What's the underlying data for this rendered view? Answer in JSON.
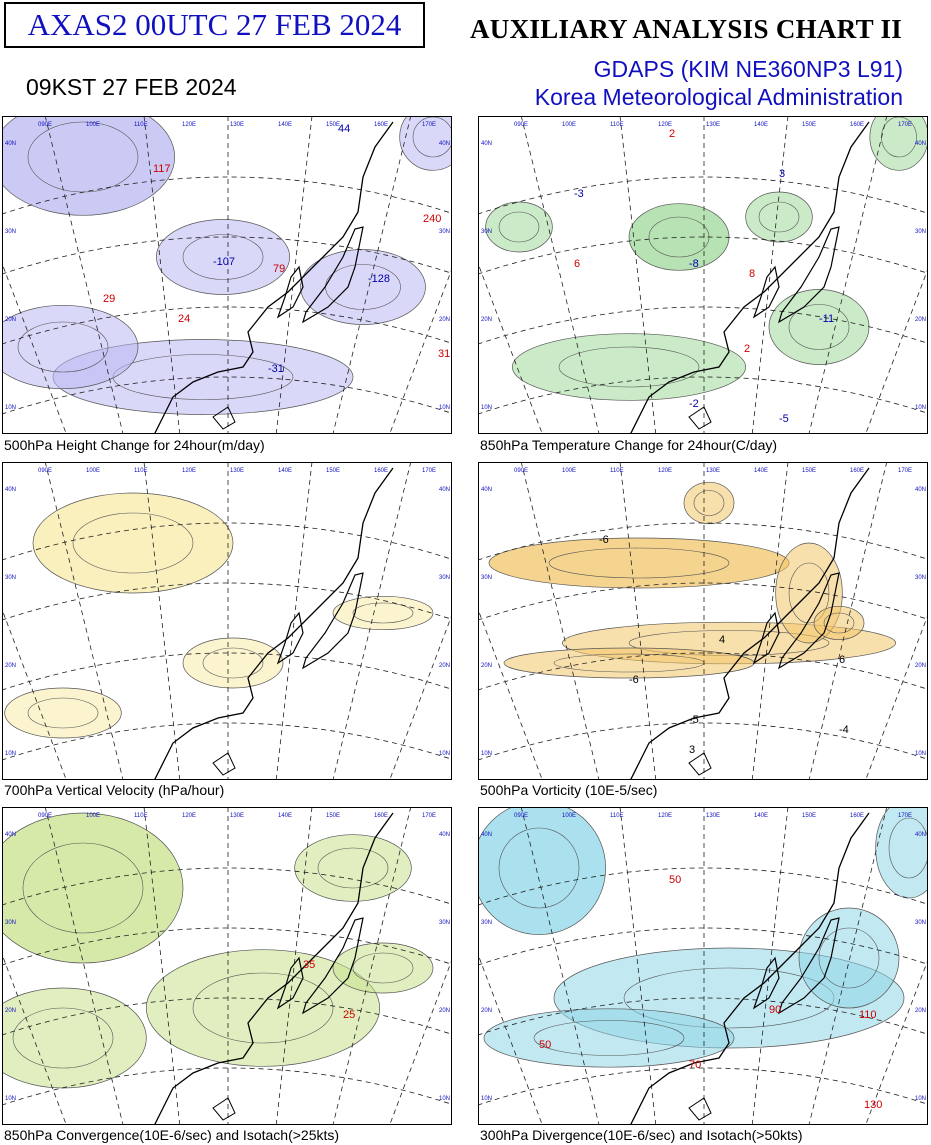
{
  "header": {
    "code": "AXAS2  00UTC 27 FEB 2024",
    "kst": "09KST 27 FEB 2024",
    "title": "AUXILIARY ANALYSIS CHART II",
    "model": "GDAPS (KIM NE360NP3 L91)",
    "agency": "Korea Meteorological Administration"
  },
  "panels": [
    {
      "caption": "500hPa Height Change for 24hour(m/day)",
      "fill": "#b9b8f2",
      "labels": [
        {
          "text": "117",
          "color": "#cc0000"
        },
        {
          "text": "-107",
          "color": "#0000aa"
        },
        {
          "text": "79",
          "color": "#cc0000"
        },
        {
          "text": "-128",
          "color": "#0000aa"
        },
        {
          "text": "240",
          "color": "#cc0000"
        },
        {
          "text": "29",
          "color": "#cc0000"
        },
        {
          "text": "24",
          "color": "#cc0000"
        },
        {
          "text": "-31",
          "color": "#0000aa"
        },
        {
          "text": "31",
          "color": "#cc0000"
        },
        {
          "text": "44",
          "color": "#0000aa"
        }
      ]
    },
    {
      "caption": "850hPa Temperature Change for 24hour(C/day)",
      "fill": "#9fd89a",
      "labels": [
        {
          "text": "2",
          "color": "#cc0000"
        },
        {
          "text": "-3",
          "color": "#0000aa"
        },
        {
          "text": "6",
          "color": "#cc0000"
        },
        {
          "text": "-8",
          "color": "#0000aa"
        },
        {
          "text": "8",
          "color": "#cc0000"
        },
        {
          "text": "-11",
          "color": "#0000aa"
        },
        {
          "text": "2",
          "color": "#cc0000"
        },
        {
          "text": "-2",
          "color": "#0000aa"
        },
        {
          "text": "3",
          "color": "#0000aa"
        },
        {
          "text": "-5",
          "color": "#0000aa"
        }
      ]
    },
    {
      "caption": "700hPa Vertical Velocity (hPa/hour)",
      "fill": "#f7eba8",
      "labels": []
    },
    {
      "caption": "500hPa Vorticity (10E-5/sec)",
      "fill": "#f2c66a",
      "labels": [
        {
          "text": "-6",
          "color": "#000000"
        },
        {
          "text": "4",
          "color": "#000000"
        },
        {
          "text": "-6",
          "color": "#000000"
        },
        {
          "text": "-5",
          "color": "#000000"
        },
        {
          "text": "6",
          "color": "#000000"
        },
        {
          "text": "-4",
          "color": "#000000"
        },
        {
          "text": "3",
          "color": "#000000"
        }
      ]
    },
    {
      "caption": "850hPa Convergence(10E-6/sec) and Isotach(>25kts)",
      "fill": "#c8e28c",
      "labels": [
        {
          "text": "35",
          "color": "#cc0000"
        },
        {
          "text": "25",
          "color": "#cc0000"
        }
      ]
    },
    {
      "caption": "300hPa Divergence(10E-6/sec) and Isotach(>50kts)",
      "fill": "#8fd6e8",
      "labels": [
        {
          "text": "50",
          "color": "#cc0000"
        },
        {
          "text": "70",
          "color": "#cc0000"
        },
        {
          "text": "90",
          "color": "#cc0000"
        },
        {
          "text": "110",
          "color": "#cc0000"
        },
        {
          "text": "130",
          "color": "#cc0000"
        },
        {
          "text": "50",
          "color": "#cc0000"
        }
      ]
    }
  ],
  "grid": {
    "lon_labels": [
      "090E",
      "100E",
      "110E",
      "120E",
      "130E",
      "140E",
      "150E",
      "160E",
      "170E"
    ],
    "lat_labels": [
      "10N",
      "20N",
      "30N",
      "40N"
    ]
  }
}
